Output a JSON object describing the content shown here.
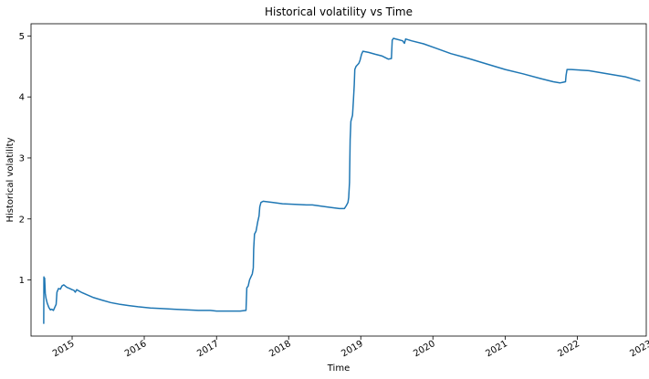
{
  "chart_data": {
    "type": "line",
    "title": "Historical volatility vs Time",
    "xlabel": "Time",
    "ylabel": "Historical volatility",
    "x_ticks": [
      "2015",
      "2016",
      "2017",
      "2018",
      "2019",
      "2020",
      "2021",
      "2022",
      "2023"
    ],
    "y_ticks": [
      1,
      2,
      3,
      4,
      5
    ],
    "xlim": [
      "2014-06-07",
      "2022-12-16"
    ],
    "ylim": [
      0.08,
      5.2
    ],
    "grid": false,
    "series": [
      {
        "color": "#1f77b4",
        "points": [
          [
            "2014-08-10",
            0.28
          ],
          [
            "2014-08-11",
            1.05
          ],
          [
            "2014-08-12",
            0.92
          ],
          [
            "2014-08-15",
            1.03
          ],
          [
            "2014-08-18",
            0.78
          ],
          [
            "2014-08-22",
            0.7
          ],
          [
            "2014-08-28",
            0.62
          ],
          [
            "2014-09-05",
            0.55
          ],
          [
            "2014-09-13",
            0.51
          ],
          [
            "2014-09-20",
            0.52
          ],
          [
            "2014-09-28",
            0.5
          ],
          [
            "2014-10-05",
            0.55
          ],
          [
            "2014-10-12",
            0.6
          ],
          [
            "2014-10-16",
            0.8
          ],
          [
            "2014-10-24",
            0.86
          ],
          [
            "2014-11-03",
            0.85
          ],
          [
            "2014-11-10",
            0.9
          ],
          [
            "2014-11-20",
            0.92
          ],
          [
            "2014-12-05",
            0.88
          ],
          [
            "2014-12-20",
            0.86
          ],
          [
            "2015-01-01",
            0.84
          ],
          [
            "2015-01-10",
            0.83
          ],
          [
            "2015-01-17",
            0.8
          ],
          [
            "2015-01-24",
            0.84
          ],
          [
            "2015-02-15",
            0.8
          ],
          [
            "2015-03-15",
            0.76
          ],
          [
            "2015-04-20",
            0.71
          ],
          [
            "2015-06-01",
            0.67
          ],
          [
            "2015-07-15",
            0.63
          ],
          [
            "2015-09-01",
            0.6
          ],
          [
            "2015-10-15",
            0.58
          ],
          [
            "2015-12-01",
            0.56
          ],
          [
            "2016-02-01",
            0.54
          ],
          [
            "2016-04-01",
            0.53
          ],
          [
            "2016-06-01",
            0.52
          ],
          [
            "2016-08-01",
            0.51
          ],
          [
            "2016-10-01",
            0.5
          ],
          [
            "2016-12-01",
            0.5
          ],
          [
            "2017-01-01",
            0.49
          ],
          [
            "2017-03-01",
            0.49
          ],
          [
            "2017-05-01",
            0.49
          ],
          [
            "2017-05-30",
            0.5
          ],
          [
            "2017-06-03",
            0.87
          ],
          [
            "2017-06-10",
            0.9
          ],
          [
            "2017-06-17",
            1.0
          ],
          [
            "2017-06-24",
            1.05
          ],
          [
            "2017-07-01",
            1.1
          ],
          [
            "2017-07-06",
            1.2
          ],
          [
            "2017-07-08",
            1.5
          ],
          [
            "2017-07-12",
            1.75
          ],
          [
            "2017-07-20",
            1.8
          ],
          [
            "2017-07-28",
            1.95
          ],
          [
            "2017-08-04",
            2.05
          ],
          [
            "2017-08-08",
            2.2
          ],
          [
            "2017-08-14",
            2.27
          ],
          [
            "2017-08-25",
            2.29
          ],
          [
            "2017-10-15",
            2.27
          ],
          [
            "2017-12-01",
            2.25
          ],
          [
            "2018-02-01",
            2.24
          ],
          [
            "2018-04-01",
            2.23
          ],
          [
            "2018-05-01",
            2.23
          ],
          [
            "2018-06-15",
            2.21
          ],
          [
            "2018-08-01",
            2.19
          ],
          [
            "2018-09-15",
            2.17
          ],
          [
            "2018-10-10",
            2.17
          ],
          [
            "2018-10-20",
            2.22
          ],
          [
            "2018-10-28",
            2.27
          ],
          [
            "2018-11-01",
            2.35
          ],
          [
            "2018-11-05",
            2.6
          ],
          [
            "2018-11-08",
            3.3
          ],
          [
            "2018-11-12",
            3.6
          ],
          [
            "2018-11-20",
            3.7
          ],
          [
            "2018-11-25",
            3.95
          ],
          [
            "2018-11-29",
            4.2
          ],
          [
            "2018-12-02",
            4.45
          ],
          [
            "2018-12-08",
            4.5
          ],
          [
            "2018-12-22",
            4.55
          ],
          [
            "2018-12-28",
            4.6
          ],
          [
            "2019-01-05",
            4.7
          ],
          [
            "2019-01-12",
            4.75
          ],
          [
            "2019-02-10",
            4.73
          ],
          [
            "2019-03-15",
            4.7
          ],
          [
            "2019-04-20",
            4.67
          ],
          [
            "2019-05-20",
            4.62
          ],
          [
            "2019-06-05",
            4.63
          ],
          [
            "2019-06-09",
            4.93
          ],
          [
            "2019-06-15",
            4.96
          ],
          [
            "2019-08-01",
            4.92
          ],
          [
            "2019-08-10",
            4.88
          ],
          [
            "2019-08-16",
            4.95
          ],
          [
            "2019-09-15",
            4.92
          ],
          [
            "2019-11-15",
            4.87
          ],
          [
            "2020-01-15",
            4.8
          ],
          [
            "2020-04-01",
            4.71
          ],
          [
            "2020-07-01",
            4.63
          ],
          [
            "2020-10-01",
            4.54
          ],
          [
            "2021-01-01",
            4.45
          ],
          [
            "2021-04-01",
            4.38
          ],
          [
            "2021-07-01",
            4.3
          ],
          [
            "2021-09-01",
            4.25
          ],
          [
            "2021-10-05",
            4.23
          ],
          [
            "2021-10-20",
            4.24
          ],
          [
            "2021-11-02",
            4.25
          ],
          [
            "2021-11-05",
            4.35
          ],
          [
            "2021-11-10",
            4.45
          ],
          [
            "2021-12-01",
            4.45
          ],
          [
            "2022-03-01",
            4.43
          ],
          [
            "2022-06-01",
            4.38
          ],
          [
            "2022-09-01",
            4.33
          ],
          [
            "2022-11-15",
            4.26
          ]
        ]
      }
    ]
  }
}
